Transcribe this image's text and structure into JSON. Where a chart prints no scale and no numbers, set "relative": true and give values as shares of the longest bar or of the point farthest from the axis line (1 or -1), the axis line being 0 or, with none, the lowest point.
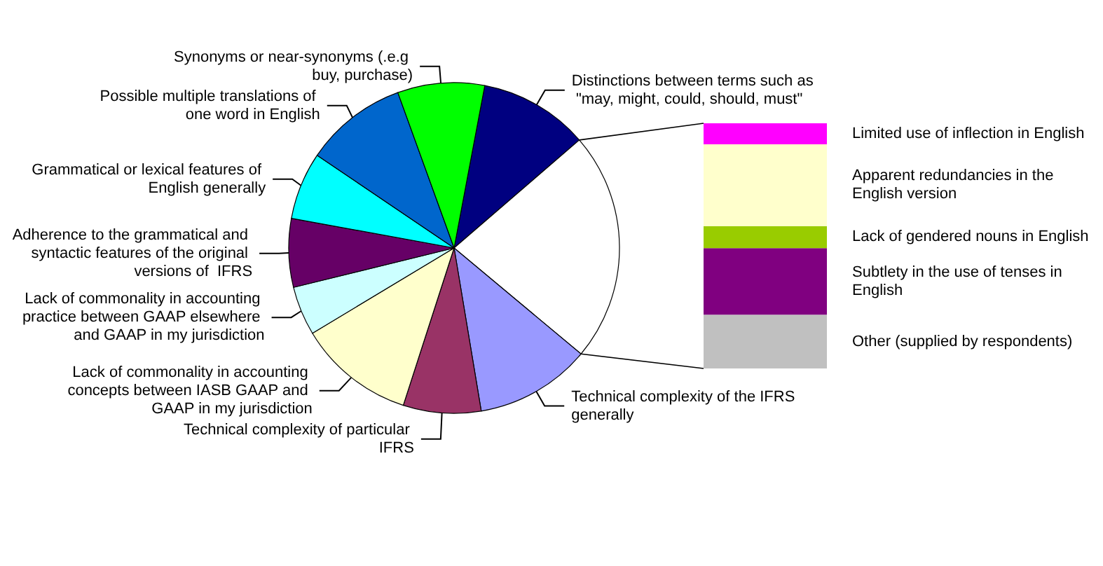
{
  "chart_data": [
    {
      "type": "pie",
      "categories": [
        "Distinctions between terms such as \"may, might, could, should, must\"",
        null,
        "Technical complexity of the IFRS generally",
        "Technical complexity of particular IFRS",
        "Lack of commonality in accounting concepts between IASB GAAP and GAAP in my jurisdiction",
        "Lack of commonality in accounting practice between GAAP elsewhere and GAAP in my jurisdiction",
        "Adherence to the grammatical and syntactic features of the original versions of  IFRS",
        "Grammatical or lexical features of English generally",
        "Possible multiple translations of one word in English",
        "Synonyms or near-synonyms (.e.g buy, purchase)"
      ],
      "values": [
        10.7,
        22.4,
        11.3,
        7.6,
        11.4,
        4.8,
        6.7,
        6.6,
        10.0,
        8.5
      ],
      "colors": [
        "#000080",
        "#ffffff",
        "#9999ff",
        "#993366",
        "#ffffcc",
        "#ccffff",
        "#660066",
        "#00ffff",
        "#0066cc",
        "#00ff00"
      ]
    },
    {
      "type": "bar",
      "stacked": true,
      "relative": true,
      "categories": [
        null
      ],
      "series": [
        {
          "name": "Other (supplied by respondents)",
          "color": "#c0c0c0",
          "values": [
            0.219
          ]
        },
        {
          "name": "Subtlety in the use of tenses in English",
          "color": "#800080",
          "values": [
            0.272
          ]
        },
        {
          "name": "Lack of gendered nouns in English",
          "color": "#99cc00",
          "values": [
            0.09
          ]
        },
        {
          "name": "Apparent redundancies in the English version",
          "color": "#ffffcc",
          "values": [
            0.333
          ]
        },
        {
          "name": "Limited use of inflection in English",
          "color": "#ff00ff",
          "values": [
            0.086
          ]
        }
      ]
    }
  ]
}
